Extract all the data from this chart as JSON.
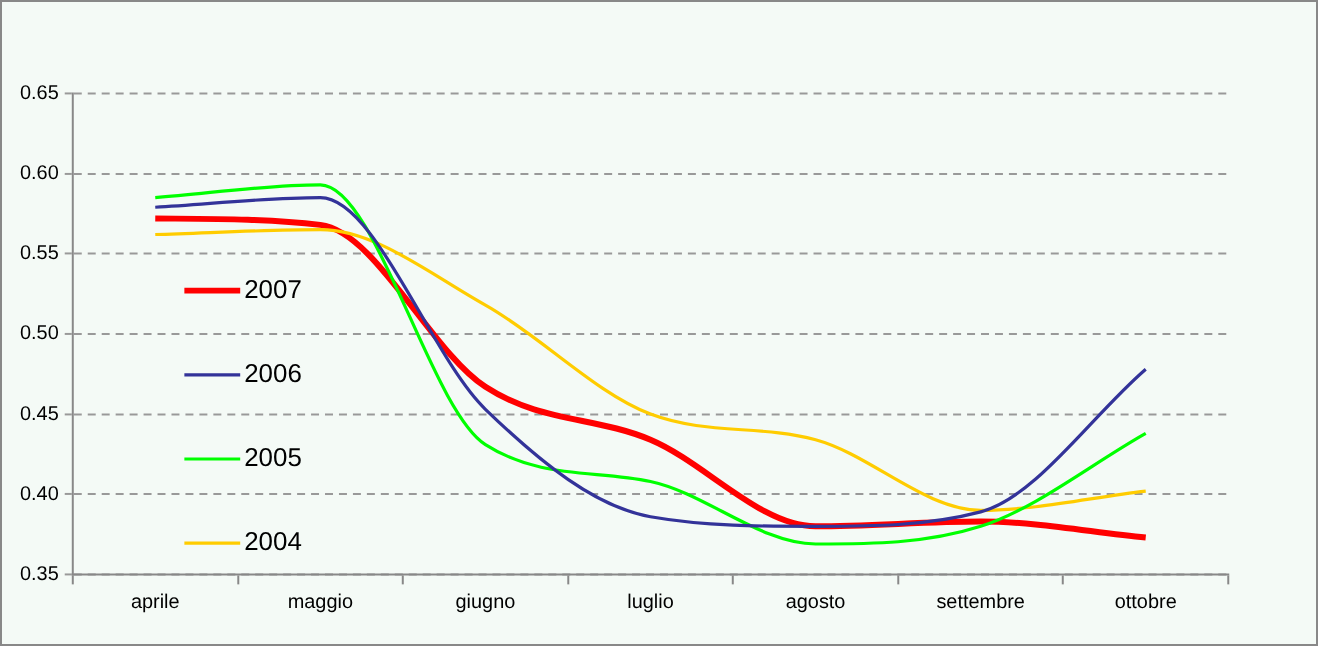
{
  "chart_data": {
    "type": "line",
    "categories": [
      "aprile",
      "maggio",
      "giugno",
      "luglio",
      "agosto",
      "settembre",
      "ottobre"
    ],
    "series": [
      {
        "name": "2007",
        "color": "#ff0000",
        "values": [
          0.572,
          0.568,
          0.467,
          0.434,
          0.38,
          0.383,
          0.373
        ]
      },
      {
        "name": "2006",
        "color": "#333399",
        "values": [
          0.579,
          0.585,
          0.453,
          0.386,
          0.38,
          0.389,
          0.478
        ]
      },
      {
        "name": "2005",
        "color": "#00ff00",
        "values": [
          0.585,
          0.593,
          0.431,
          0.408,
          0.369,
          0.38,
          0.438
        ]
      },
      {
        "name": "2004",
        "color": "#ffcc00",
        "values": [
          0.562,
          0.565,
          0.518,
          0.45,
          0.434,
          0.39,
          0.402
        ]
      }
    ],
    "ylim": [
      0.35,
      0.65
    ],
    "yticks": [
      {
        "value": 0.35,
        "label": "0.35"
      },
      {
        "value": 0.4,
        "label": "0.40"
      },
      {
        "value": 0.45,
        "label": "0.45"
      },
      {
        "value": 0.5,
        "label": "0.50"
      },
      {
        "value": 0.55,
        "label": "0.55"
      },
      {
        "value": 0.6,
        "label": "0.60"
      },
      {
        "value": 0.65,
        "label": "0.65"
      }
    ],
    "grid": "y",
    "legend": "left",
    "marker": "none",
    "line_style": "solid"
  }
}
